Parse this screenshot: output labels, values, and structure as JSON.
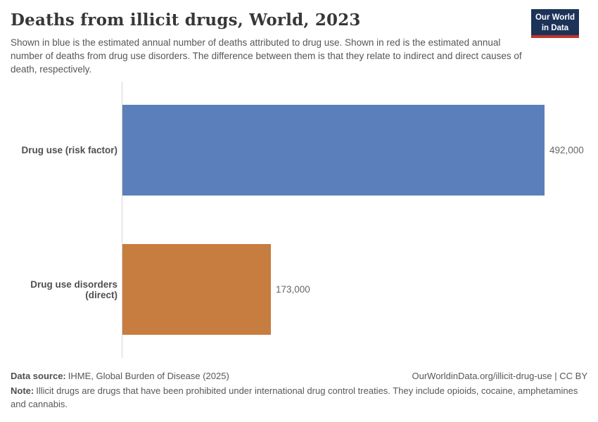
{
  "header": {
    "title": "Deaths from illicit drugs, World, 2023",
    "subtitle": "Shown in blue is the estimated annual number of deaths attributed to drug use. Shown in red is the estimated annual number of deaths from drug use disorders. The difference between them is that they relate to indirect and direct causes of death, respectively."
  },
  "logo": {
    "line1": "Our World",
    "line2": "in Data",
    "bg_color": "#1c3259",
    "accent_color": "#c2342c"
  },
  "chart_data": {
    "type": "bar",
    "orientation": "horizontal",
    "title": "Deaths from illicit drugs, World, 2023",
    "entity": "World",
    "year": "2023",
    "categories": [
      "Drug use (risk factor)",
      "Drug use disorders (direct)"
    ],
    "values": [
      492000,
      173000
    ],
    "value_labels": [
      "492,000",
      "173,000"
    ],
    "colors": [
      "#5b7fba",
      "#c77c40"
    ],
    "xlim": [
      0,
      492000
    ],
    "grid": false,
    "legend": "none",
    "axis_line_color": "#d6d6d6"
  },
  "footer": {
    "source_label": "Data source:",
    "source_value": "IHME, Global Burden of Disease (2025)",
    "credit": "OurWorldinData.org/illicit-drug-use | CC BY",
    "note_label": "Note:",
    "note_value": "Illicit drugs are drugs that have been prohibited under international drug control treaties. They include opioids, cocaine, amphetamines and cannabis."
  }
}
